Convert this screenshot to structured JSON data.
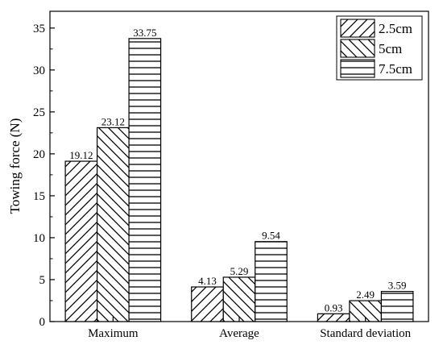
{
  "chart_data": {
    "type": "bar",
    "ylabel": "Towing force (N)",
    "xlabel": "",
    "categories": [
      "Maximum",
      "Average",
      "Standard deviation"
    ],
    "series": [
      {
        "name": "2.5cm",
        "pattern": "diagonal-forward",
        "values": [
          19.12,
          4.13,
          0.93
        ],
        "labels": [
          "19.12",
          "4.13",
          "0.93"
        ]
      },
      {
        "name": "5cm",
        "pattern": "diagonal-backward",
        "values": [
          23.12,
          5.29,
          2.49
        ],
        "labels": [
          "23.12",
          "5.29",
          "2.49"
        ]
      },
      {
        "name": "7.5cm",
        "pattern": "horizontal",
        "values": [
          33.75,
          9.54,
          3.59
        ],
        "labels": [
          "33.75",
          "9.54",
          "3.59"
        ]
      }
    ],
    "ylim": [
      0,
      37
    ],
    "yticks": [
      0,
      5,
      10,
      15,
      20,
      25,
      30,
      35
    ],
    "legend": "top-right",
    "grid": false
  }
}
